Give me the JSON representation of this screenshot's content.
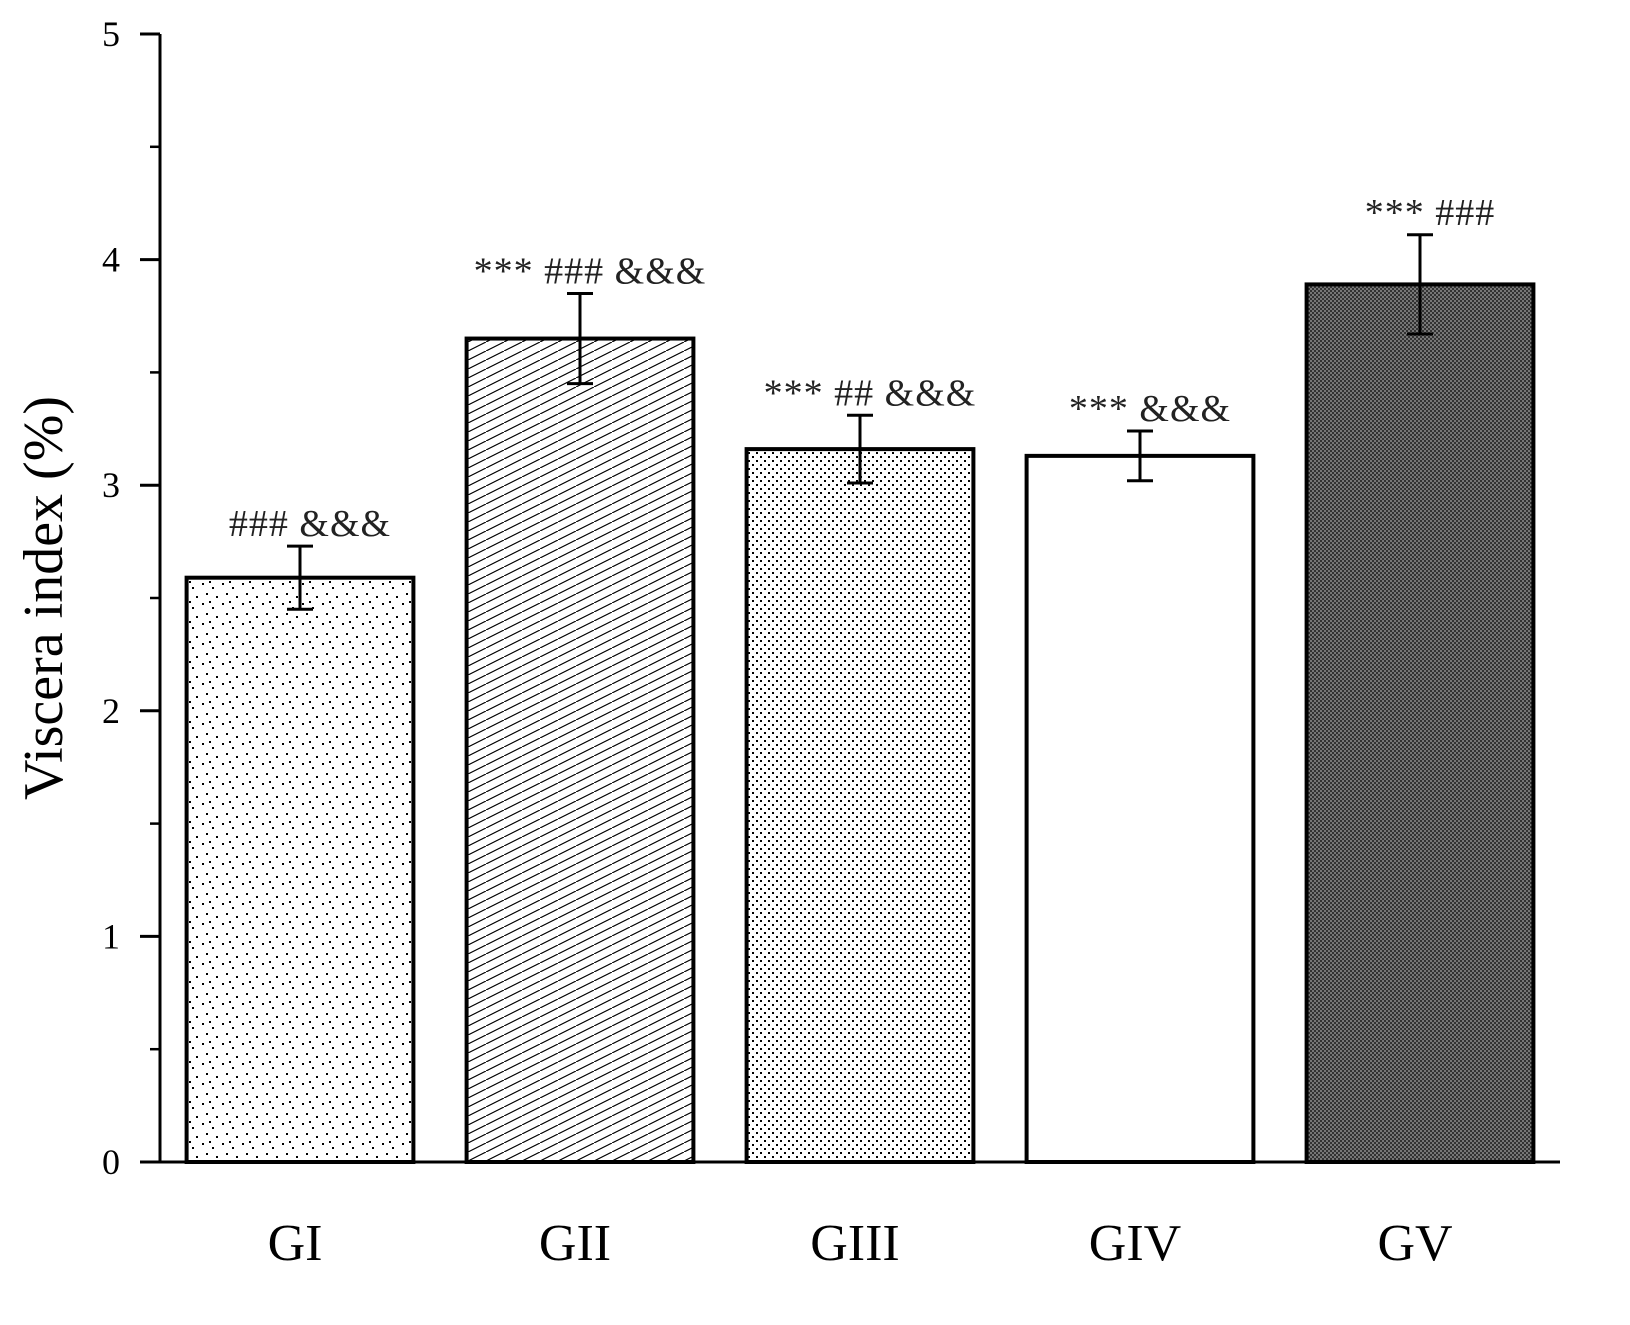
{
  "chart_data": {
    "type": "bar",
    "title": "",
    "xlabel": "",
    "ylabel": "Viscera index (%)",
    "ylim": [
      0,
      5
    ],
    "yticks": [
      0,
      1,
      2,
      3,
      4,
      5
    ],
    "categories": [
      "GI",
      "GII",
      "GIII",
      "GIV",
      "GV"
    ],
    "values": [
      2.59,
      3.65,
      3.16,
      3.13,
      3.89
    ],
    "errors": [
      0.14,
      0.2,
      0.15,
      0.11,
      0.22
    ],
    "annotations": [
      "### &&&",
      "*** ### &&&",
      "*** ## &&&",
      "*** &&&",
      "*** ###"
    ],
    "fills": [
      "sparse-dots",
      "diagonal-hatch",
      "dense-dots",
      "none",
      "crosshatch-dark"
    ],
    "colors": {
      "axis": "#000000",
      "bar_edge": "#000000",
      "dark_fill": "#555555"
    }
  }
}
